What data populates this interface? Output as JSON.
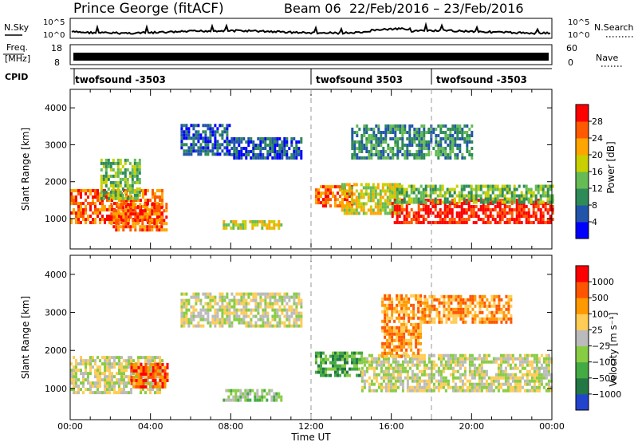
{
  "header": {
    "station": "Prince George (fitACF)",
    "beam": "Beam 06",
    "date_range": "22/Feb/2016 – 23/Feb/2016"
  },
  "noise_panel": {
    "left_label": "N.Sky",
    "right_label": "N.Search",
    "left_ticks": [
      "10^5",
      "10^0"
    ],
    "right_ticks": [
      "10^5",
      "10^0"
    ]
  },
  "freq_panel": {
    "left_label_line1": "Freq.",
    "left_label_line2": "[MHz]",
    "right_label": "Nave",
    "left_ticks": [
      "18",
      "8"
    ],
    "right_ticks": [
      "60",
      "0"
    ]
  },
  "cpid_panel": {
    "label": "CPID",
    "segments": [
      {
        "name": "twofsound -3503",
        "start_hour": 0
      },
      {
        "name": "twofsound 3503",
        "start_hour": 12
      },
      {
        "name": "twofsound -3503",
        "start_hour": 18
      }
    ]
  },
  "chart_data": [
    {
      "type": "heatmap",
      "ylabel": "Slant Range [km]",
      "ylim": [
        180,
        4500
      ],
      "yticks": [
        1000,
        2000,
        3000,
        4000
      ],
      "xlim": [
        0,
        24
      ],
      "colorbar": {
        "label": "Power [dB]",
        "ticks": [
          "28",
          "24",
          "20",
          "16",
          "12",
          "8",
          "4"
        ],
        "colors": [
          "#0000ff",
          "#2255aa",
          "#2e8b57",
          "#66bb55",
          "#c8d000",
          "#ffa500",
          "#ff5a00",
          "#ff0000"
        ]
      },
      "echo_regions": [
        {
          "start_hour": 0.0,
          "end_hour": 4.6,
          "range_min": 850,
          "range_max": 1800,
          "level": 6
        },
        {
          "start_hour": 2.0,
          "end_hour": 4.8,
          "range_min": 650,
          "range_max": 1400,
          "level": 6
        },
        {
          "start_hour": 1.5,
          "end_hour": 3.5,
          "range_min": 1500,
          "range_max": 2600,
          "level": 3
        },
        {
          "start_hour": 5.5,
          "end_hour": 8.0,
          "range_min": 2700,
          "range_max": 3500,
          "level": 1
        },
        {
          "start_hour": 8.0,
          "end_hour": 11.5,
          "range_min": 2600,
          "range_max": 3200,
          "level": 1
        },
        {
          "start_hour": 7.6,
          "end_hour": 10.5,
          "range_min": 700,
          "range_max": 900,
          "level": 4
        },
        {
          "start_hour": 12.2,
          "end_hour": 14.0,
          "range_min": 1300,
          "range_max": 1900,
          "level": 6
        },
        {
          "start_hour": 13.5,
          "end_hour": 16.5,
          "range_min": 1100,
          "range_max": 1900,
          "level": 4
        },
        {
          "start_hour": 16.0,
          "end_hour": 24.0,
          "range_min": 850,
          "range_max": 1500,
          "level": 7
        },
        {
          "start_hour": 16.0,
          "end_hour": 24.0,
          "range_min": 1400,
          "range_max": 1900,
          "level": 3
        },
        {
          "start_hour": 14.0,
          "end_hour": 20.0,
          "range_min": 2600,
          "range_max": 3500,
          "level": 2
        }
      ]
    },
    {
      "type": "heatmap",
      "ylabel": "Slant Range [km]",
      "ylim": [
        180,
        4500
      ],
      "yticks": [
        1000,
        2000,
        3000,
        4000
      ],
      "xlim": [
        0,
        24
      ],
      "xticks": [
        "00:00",
        "04:00",
        "08:00",
        "12:00",
        "16:00",
        "20:00",
        "00:00"
      ],
      "xlabel": "Time UT",
      "colorbar": {
        "label": "Velocity [m s⁻¹]",
        "ticks": [
          "1000",
          "500",
          "100",
          "25",
          "−25",
          "−100",
          "−500",
          "−1000"
        ],
        "colors": [
          "#2244cc",
          "#227744",
          "#44aa44",
          "#88cc44",
          "#bbbbbb",
          "#ffcc55",
          "#ff9900",
          "#ff5500",
          "#ff0000"
        ]
      },
      "echo_regions": [
        {
          "start_hour": 0.0,
          "end_hour": 4.6,
          "range_min": 850,
          "range_max": 1800,
          "level": 4
        },
        {
          "start_hour": 3.0,
          "end_hour": 4.8,
          "range_min": 1000,
          "range_max": 1600,
          "level": 7
        },
        {
          "start_hour": 5.5,
          "end_hour": 11.5,
          "range_min": 2600,
          "range_max": 3500,
          "level": 4
        },
        {
          "start_hour": 7.6,
          "end_hour": 10.5,
          "range_min": 650,
          "range_max": 950,
          "level": 3
        },
        {
          "start_hour": 12.2,
          "end_hour": 14.5,
          "range_min": 1300,
          "range_max": 1900,
          "level": 2
        },
        {
          "start_hour": 14.5,
          "end_hour": 24.0,
          "range_min": 900,
          "range_max": 1900,
          "level": 4
        },
        {
          "start_hour": 15.5,
          "end_hour": 17.5,
          "range_min": 1800,
          "range_max": 3400,
          "level": 6
        },
        {
          "start_hour": 17.5,
          "end_hour": 22.0,
          "range_min": 2700,
          "range_max": 3400,
          "level": 6
        }
      ]
    }
  ]
}
